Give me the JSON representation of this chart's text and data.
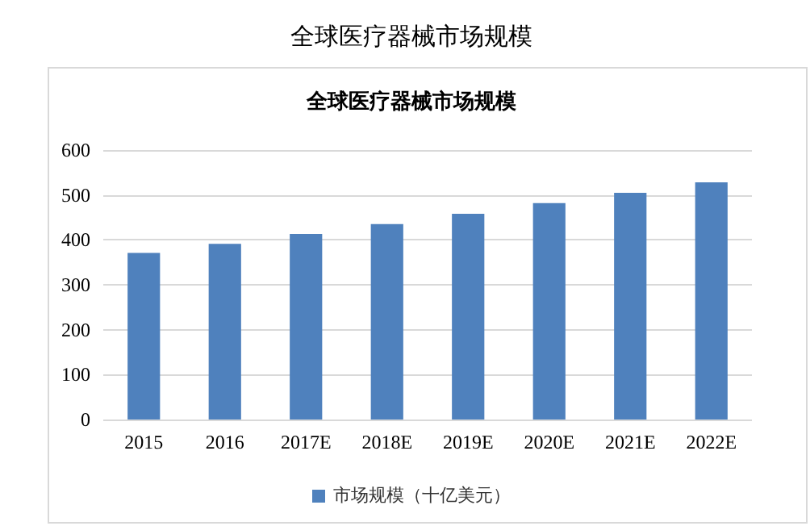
{
  "chart_data": {
    "type": "bar",
    "title": "全球医疗器械市场规模",
    "subtitle": "全球医疗器械市场规模",
    "categories": [
      "2015",
      "2016",
      "2017E",
      "2018E",
      "2019E",
      "2020E",
      "2021E",
      "2022E"
    ],
    "series": [
      {
        "name": "市场规模（十亿美元）",
        "color": "#4f81bd",
        "values": [
          371,
          391,
          413,
          435,
          458,
          482,
          505,
          528
        ]
      }
    ],
    "ylim": [
      0,
      600
    ],
    "yticks": [
      0,
      100,
      200,
      300,
      400,
      500,
      600
    ],
    "grid": "y",
    "legend": "bottom"
  }
}
